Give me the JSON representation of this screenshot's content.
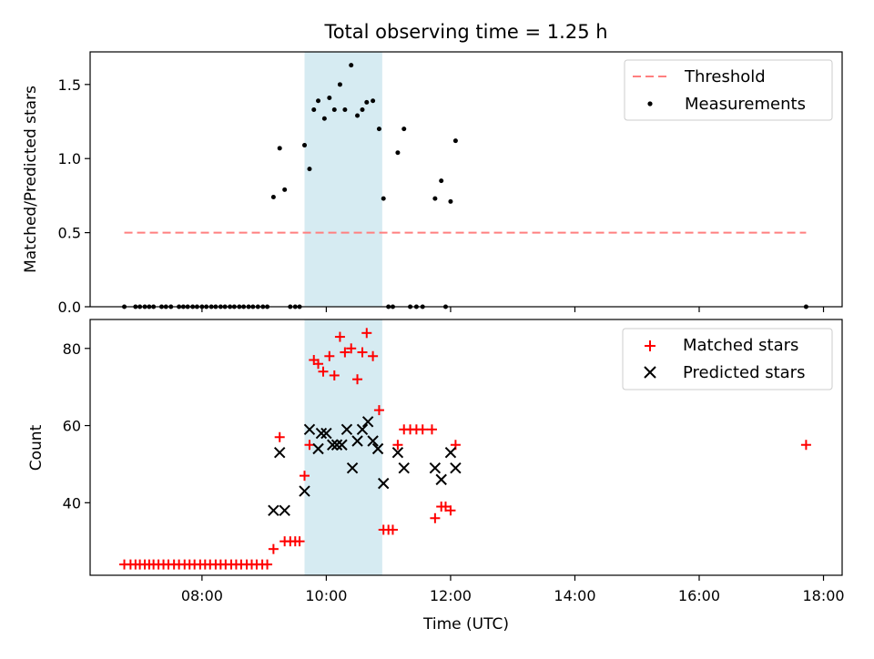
{
  "chart_data": {
    "title": "Total observing time = 1.25 h",
    "shaded_interval": {
      "start_h": 9.65,
      "end_h": 10.9,
      "color": "#add8e6"
    },
    "x_axis": {
      "label": "Time (UTC)",
      "range_h": [
        6.2,
        18.3
      ],
      "ticks_h": [
        8,
        10,
        12,
        14,
        16,
        18
      ],
      "tick_labels": [
        "08:00",
        "10:00",
        "12:00",
        "14:00",
        "16:00",
        "18:00"
      ]
    },
    "top": {
      "type": "scatter",
      "ylabel": "Matched/Predicted stars",
      "ylim": [
        0,
        1.72
      ],
      "yticks": [
        0.0,
        0.5,
        1.0,
        1.5
      ],
      "ytick_labels": [
        "0.0",
        "0.5",
        "1.0",
        "1.5"
      ],
      "legend_position": "top-right",
      "threshold": {
        "name": "Threshold",
        "value": 0.5,
        "x_range_h": [
          6.75,
          17.72
        ],
        "color": "#ff7f7f"
      },
      "measurements": {
        "name": "Measurements",
        "color": "#000000",
        "points": [
          [
            6.75,
            0
          ],
          [
            6.93,
            0
          ],
          [
            7.0,
            0
          ],
          [
            7.08,
            0
          ],
          [
            7.15,
            0
          ],
          [
            7.22,
            0
          ],
          [
            7.35,
            0
          ],
          [
            7.42,
            0
          ],
          [
            7.5,
            0
          ],
          [
            7.63,
            0
          ],
          [
            7.7,
            0
          ],
          [
            7.77,
            0
          ],
          [
            7.85,
            0
          ],
          [
            7.92,
            0
          ],
          [
            8.0,
            0
          ],
          [
            8.07,
            0
          ],
          [
            8.15,
            0
          ],
          [
            8.22,
            0
          ],
          [
            8.3,
            0
          ],
          [
            8.37,
            0
          ],
          [
            8.45,
            0
          ],
          [
            8.52,
            0
          ],
          [
            8.6,
            0
          ],
          [
            8.67,
            0
          ],
          [
            8.75,
            0
          ],
          [
            8.82,
            0
          ],
          [
            8.9,
            0
          ],
          [
            8.98,
            0
          ],
          [
            9.05,
            0
          ],
          [
            9.15,
            0.74
          ],
          [
            9.25,
            1.07
          ],
          [
            9.33,
            0.79
          ],
          [
            9.42,
            0
          ],
          [
            9.5,
            0
          ],
          [
            9.57,
            0
          ],
          [
            9.65,
            1.09
          ],
          [
            9.73,
            0.93
          ],
          [
            9.8,
            1.33
          ],
          [
            9.87,
            1.39
          ],
          [
            9.97,
            1.27
          ],
          [
            10.05,
            1.41
          ],
          [
            10.13,
            1.33
          ],
          [
            10.22,
            1.5
          ],
          [
            10.3,
            1.33
          ],
          [
            10.4,
            1.63
          ],
          [
            10.5,
            1.29
          ],
          [
            10.58,
            1.33
          ],
          [
            10.65,
            1.38
          ],
          [
            10.75,
            1.39
          ],
          [
            10.85,
            1.2
          ],
          [
            10.92,
            0.73
          ],
          [
            11.0,
            0
          ],
          [
            11.07,
            0
          ],
          [
            11.15,
            1.04
          ],
          [
            11.25,
            1.2
          ],
          [
            11.35,
            0
          ],
          [
            11.45,
            0
          ],
          [
            11.55,
            0
          ],
          [
            11.75,
            0.73
          ],
          [
            11.85,
            0.85
          ],
          [
            11.92,
            0
          ],
          [
            12.0,
            0.71
          ],
          [
            12.08,
            1.12
          ],
          [
            17.72,
            0
          ]
        ]
      }
    },
    "bottom": {
      "type": "scatter",
      "ylabel": "Count",
      "ylim": [
        21.2,
        87.5
      ],
      "yticks": [
        40,
        60,
        80
      ],
      "ytick_labels": [
        "40",
        "60",
        "80"
      ],
      "legend_position": "top-right",
      "matched": {
        "name": "Matched stars",
        "color": "#ff0000",
        "points": [
          [
            6.75,
            24
          ],
          [
            6.85,
            24
          ],
          [
            6.93,
            24
          ],
          [
            7.0,
            24
          ],
          [
            7.08,
            24
          ],
          [
            7.15,
            24
          ],
          [
            7.22,
            24
          ],
          [
            7.3,
            24
          ],
          [
            7.38,
            24
          ],
          [
            7.46,
            24
          ],
          [
            7.55,
            24
          ],
          [
            7.63,
            24
          ],
          [
            7.72,
            24
          ],
          [
            7.8,
            24
          ],
          [
            7.88,
            24
          ],
          [
            7.97,
            24
          ],
          [
            8.05,
            24
          ],
          [
            8.13,
            24
          ],
          [
            8.22,
            24
          ],
          [
            8.3,
            24
          ],
          [
            8.38,
            24
          ],
          [
            8.47,
            24
          ],
          [
            8.55,
            24
          ],
          [
            8.63,
            24
          ],
          [
            8.72,
            24
          ],
          [
            8.8,
            24
          ],
          [
            8.88,
            24
          ],
          [
            8.97,
            24
          ],
          [
            9.05,
            24
          ],
          [
            9.15,
            28
          ],
          [
            9.25,
            57
          ],
          [
            9.33,
            30
          ],
          [
            9.42,
            30
          ],
          [
            9.5,
            30
          ],
          [
            9.57,
            30
          ],
          [
            9.65,
            47
          ],
          [
            9.73,
            55
          ],
          [
            9.8,
            77
          ],
          [
            9.87,
            76
          ],
          [
            9.95,
            74
          ],
          [
            10.05,
            78
          ],
          [
            10.13,
            73
          ],
          [
            10.22,
            83
          ],
          [
            10.3,
            79
          ],
          [
            10.4,
            80
          ],
          [
            10.5,
            72
          ],
          [
            10.58,
            79
          ],
          [
            10.65,
            84
          ],
          [
            10.75,
            78
          ],
          [
            10.85,
            64
          ],
          [
            10.92,
            33
          ],
          [
            11.0,
            33
          ],
          [
            11.07,
            33
          ],
          [
            11.15,
            55
          ],
          [
            11.25,
            59
          ],
          [
            11.35,
            59
          ],
          [
            11.45,
            59
          ],
          [
            11.55,
            59
          ],
          [
            11.7,
            59
          ],
          [
            11.75,
            36
          ],
          [
            11.85,
            39
          ],
          [
            11.92,
            39
          ],
          [
            12.0,
            38
          ],
          [
            12.08,
            55
          ],
          [
            17.72,
            55
          ]
        ]
      },
      "predicted": {
        "name": "Predicted stars",
        "color": "#000000",
        "points": [
          [
            9.15,
            38
          ],
          [
            9.25,
            53
          ],
          [
            9.33,
            38
          ],
          [
            9.65,
            43
          ],
          [
            9.73,
            59
          ],
          [
            9.87,
            54
          ],
          [
            9.92,
            58
          ],
          [
            10.0,
            58
          ],
          [
            10.1,
            55
          ],
          [
            10.17,
            55
          ],
          [
            10.25,
            55
          ],
          [
            10.33,
            59
          ],
          [
            10.42,
            49
          ],
          [
            10.5,
            56
          ],
          [
            10.58,
            59
          ],
          [
            10.67,
            61
          ],
          [
            10.75,
            56
          ],
          [
            10.83,
            54
          ],
          [
            10.92,
            45
          ],
          [
            11.15,
            53
          ],
          [
            11.25,
            49
          ],
          [
            11.75,
            49
          ],
          [
            11.85,
            46
          ],
          [
            12.0,
            53
          ],
          [
            12.08,
            49
          ]
        ]
      }
    }
  }
}
